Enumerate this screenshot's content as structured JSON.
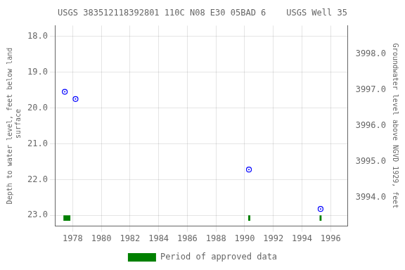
{
  "chart_data": {
    "type": "scatter",
    "title": "USGS 383512118392801 110C N08 E30 05BAD 6    USGS Well 35",
    "ylabel": "Depth to water level, feet below land\n surface",
    "y2label": "Groundwater level above NGVD 1929, feet",
    "xlim": [
      1976.8,
      1997.2
    ],
    "xticks": [
      1978,
      1980,
      1982,
      1984,
      1986,
      1988,
      1990,
      1992,
      1994,
      1996
    ],
    "ylim": [
      23.3,
      17.7
    ],
    "yticks": [
      {
        "value": 18.0,
        "label": "18.0"
      },
      {
        "value": 19.0,
        "label": "19.0"
      },
      {
        "value": 20.0,
        "label": "20.0"
      },
      {
        "value": 21.0,
        "label": "21.0"
      },
      {
        "value": 22.0,
        "label": "22.0"
      },
      {
        "value": 23.0,
        "label": "23.0"
      }
    ],
    "y2lim": [
      3993.2,
      3998.8
    ],
    "y2ticks": [
      {
        "value": 3994.0,
        "label": "3994.0"
      },
      {
        "value": 3995.0,
        "label": "3995.0"
      },
      {
        "value": 3996.0,
        "label": "3996.0"
      },
      {
        "value": 3997.0,
        "label": "3997.0"
      },
      {
        "value": 3998.0,
        "label": "3998.0"
      }
    ],
    "grid": true,
    "legend": "bottom",
    "series": [
      {
        "type": "scatter",
        "color": "#0000ff",
        "marker": "circle",
        "x": [
          1977.45,
          1978.2,
          1990.3,
          1995.3
        ],
        "values": [
          19.55,
          19.75,
          21.72,
          22.82
        ]
      },
      {
        "name": "Period of approved data",
        "type": "bar",
        "color": "#008000",
        "x_start": [
          1977.35,
          1990.25,
          1995.22
        ],
        "x_end": [
          1977.85,
          1990.4,
          1995.38
        ],
        "y_top": 23.0,
        "y_bottom": 23.15
      }
    ]
  }
}
